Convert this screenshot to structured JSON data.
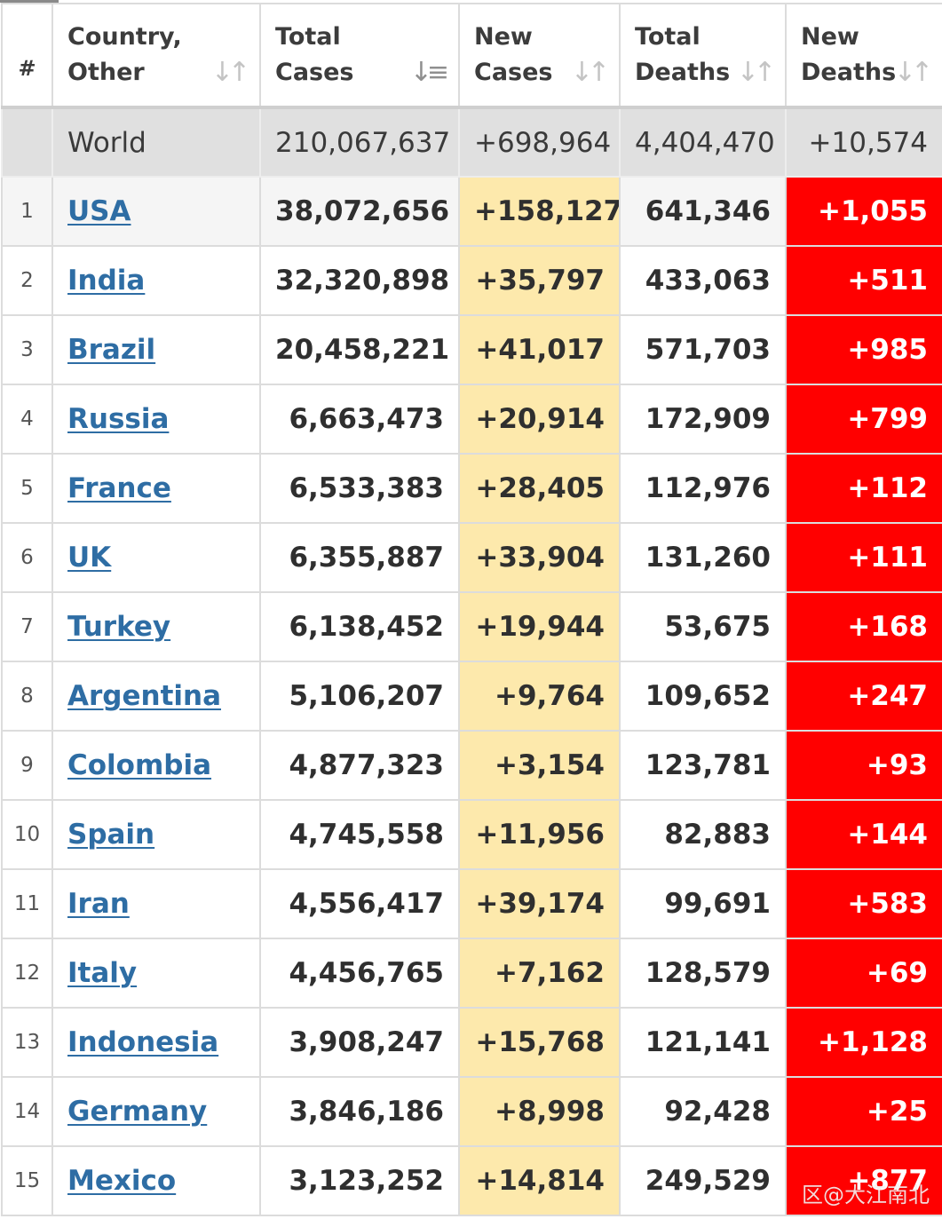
{
  "header": {
    "rank": "#",
    "country": "Country, Other",
    "total_cases": "Total Cases",
    "new_cases": "New Cases",
    "total_deaths": "Total Deaths",
    "new_deaths": "New Deaths"
  },
  "colors": {
    "new_cases_bg": "#fde9ac",
    "new_deaths_bg": "#ff0000",
    "link": "#2e6da4",
    "world_row_bg": "#e0e0e0"
  },
  "world": {
    "label": "World",
    "total_cases": "210,067,637",
    "new_cases": "+698,964",
    "total_deaths": "4,404,470",
    "new_deaths": "+10,574"
  },
  "rows": [
    {
      "rank": "1",
      "country": "USA",
      "total_cases": "38,072,656",
      "new_cases": "+158,127",
      "total_deaths": "641,346",
      "new_deaths": "+1,055"
    },
    {
      "rank": "2",
      "country": "India",
      "total_cases": "32,320,898",
      "new_cases": "+35,797",
      "total_deaths": "433,063",
      "new_deaths": "+511"
    },
    {
      "rank": "3",
      "country": "Brazil",
      "total_cases": "20,458,221",
      "new_cases": "+41,017",
      "total_deaths": "571,703",
      "new_deaths": "+985"
    },
    {
      "rank": "4",
      "country": "Russia",
      "total_cases": "6,663,473",
      "new_cases": "+20,914",
      "total_deaths": "172,909",
      "new_deaths": "+799"
    },
    {
      "rank": "5",
      "country": "France",
      "total_cases": "6,533,383",
      "new_cases": "+28,405",
      "total_deaths": "112,976",
      "new_deaths": "+112"
    },
    {
      "rank": "6",
      "country": "UK",
      "total_cases": "6,355,887",
      "new_cases": "+33,904",
      "total_deaths": "131,260",
      "new_deaths": "+111"
    },
    {
      "rank": "7",
      "country": "Turkey",
      "total_cases": "6,138,452",
      "new_cases": "+19,944",
      "total_deaths": "53,675",
      "new_deaths": "+168"
    },
    {
      "rank": "8",
      "country": "Argentina",
      "total_cases": "5,106,207",
      "new_cases": "+9,764",
      "total_deaths": "109,652",
      "new_deaths": "+247"
    },
    {
      "rank": "9",
      "country": "Colombia",
      "total_cases": "4,877,323",
      "new_cases": "+3,154",
      "total_deaths": "123,781",
      "new_deaths": "+93"
    },
    {
      "rank": "10",
      "country": "Spain",
      "total_cases": "4,745,558",
      "new_cases": "+11,956",
      "total_deaths": "82,883",
      "new_deaths": "+144"
    },
    {
      "rank": "11",
      "country": "Iran",
      "total_cases": "4,556,417",
      "new_cases": "+39,174",
      "total_deaths": "99,691",
      "new_deaths": "+583"
    },
    {
      "rank": "12",
      "country": "Italy",
      "total_cases": "4,456,765",
      "new_cases": "+7,162",
      "total_deaths": "128,579",
      "new_deaths": "+69"
    },
    {
      "rank": "13",
      "country": "Indonesia",
      "total_cases": "3,908,247",
      "new_cases": "+15,768",
      "total_deaths": "121,141",
      "new_deaths": "+1,128"
    },
    {
      "rank": "14",
      "country": "Germany",
      "total_cases": "3,846,186",
      "new_cases": "+8,998",
      "total_deaths": "92,428",
      "new_deaths": "+25"
    },
    {
      "rank": "15",
      "country": "Mexico",
      "total_cases": "3,123,252",
      "new_cases": "+14,814",
      "total_deaths": "249,529",
      "new_deaths": "+877"
    }
  ],
  "watermark": "区@大江南北"
}
